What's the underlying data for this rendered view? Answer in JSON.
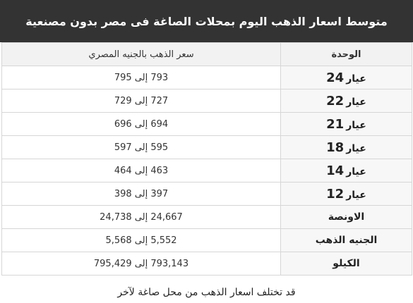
{
  "title": "متوسط اسعار الذهب اليوم بمحلات الصاغة فى مصر بدون مصنعية",
  "table": {
    "headers": {
      "unit": "الوحدة",
      "price": "سعر الذهب بالجنيه المصري"
    },
    "karat_rows": [
      {
        "label": "عيار",
        "karat": "24",
        "price": "793 إلى 795"
      },
      {
        "label": "عيار",
        "karat": "22",
        "price": "727 إلى 729"
      },
      {
        "label": "عيار",
        "karat": "21",
        "price": "694 إلى 696"
      },
      {
        "label": "عيار",
        "karat": "18",
        "price": "595 إلى 597"
      },
      {
        "label": "عيار",
        "karat": "14",
        "price": "463 إلى 464"
      },
      {
        "label": "عيار",
        "karat": "12",
        "price": "397 إلى 398"
      }
    ],
    "other_rows": [
      {
        "unit": "الاونصة",
        "price": "24,667 إلى 24,738"
      },
      {
        "unit": "الجنيه الذهب",
        "price": "5,552 إلى 5,568"
      },
      {
        "unit": "الكيلو",
        "price": "793,143 إلى 795,429"
      }
    ]
  },
  "footnote": "قد تختلف اسعار الذهب من محل صاغة لآخر",
  "colors": {
    "title_background": "#333333",
    "title_text": "#ffffff",
    "header_background": "#f2f2f2",
    "border": "#d6d6d6"
  }
}
